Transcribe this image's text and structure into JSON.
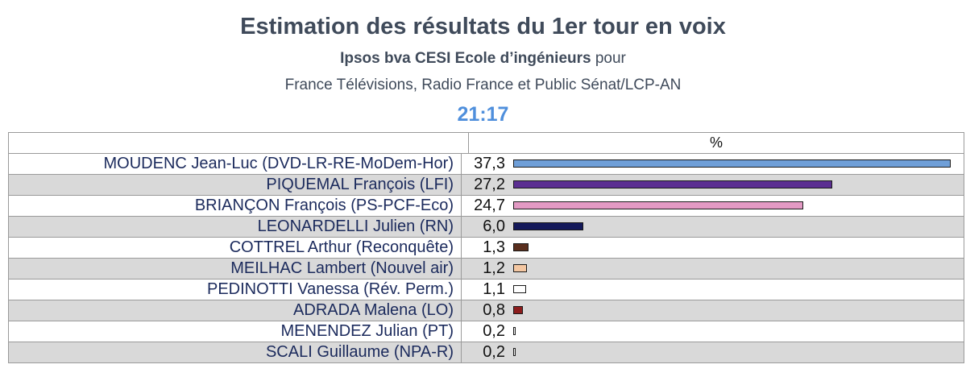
{
  "header": {
    "title": "Estimation des résultats du 1er tour en voix",
    "subtitle_bold": "Ipsos bva CESI Ecole d’ingénieurs",
    "subtitle_rest": " pour",
    "subtitle2": "France Télévisions, Radio France et Public Sénat/LCP-AN",
    "time": "21:17"
  },
  "chart_data": {
    "type": "bar",
    "value_header": "%",
    "xlim": [
      0,
      37.3
    ],
    "categories": [
      "MOUDENC Jean-Luc (DVD-LR-RE-MoDem-Hor)",
      "PIQUEMAL François (LFI)",
      "BRIANÇON François (PS-PCF-Eco)",
      "LEONARDELLI Julien (RN)",
      "COTTREL Arthur (Reconquête)",
      "MEILHAC Lambert (Nouvel air)",
      "PEDINOTTI Vanessa (Rév. Perm.)",
      "ADRADA Malena (LO)",
      "MENENDEZ Julian (PT)",
      "SCALI Guillaume (NPA-R)"
    ],
    "values": [
      37.3,
      27.2,
      24.7,
      6.0,
      1.3,
      1.2,
      1.1,
      0.8,
      0.2,
      0.2
    ],
    "labels": [
      "37,3",
      "27,2",
      "24,7",
      "6,0",
      "1,3",
      "1,2",
      "1,1",
      "0,8",
      "0,2",
      "0,2"
    ],
    "colors": [
      "#6f9fd8",
      "#5b2e91",
      "#e39ac4",
      "#14195a",
      "#5a2f1e",
      "#f4c7a2",
      "#ffffff",
      "#8c1c1c",
      "#ffffff",
      "#ffffff"
    ]
  }
}
